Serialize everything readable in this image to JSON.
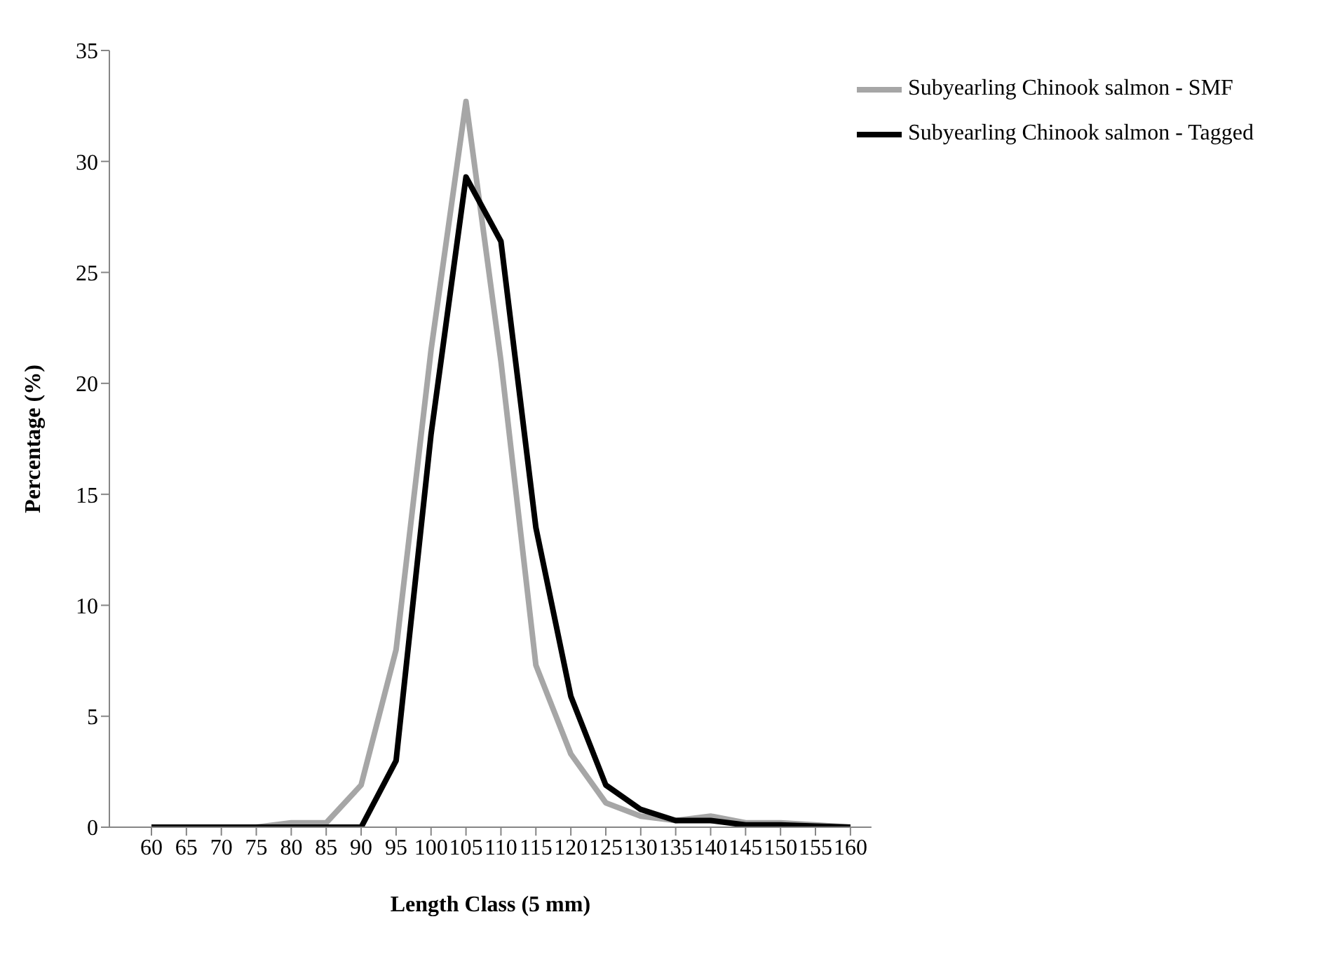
{
  "chart_data": {
    "type": "line",
    "xlabel": "Length Class (5 mm)",
    "ylabel": "Percentage (%)",
    "categories": [
      "60",
      "65",
      "70",
      "75",
      "80",
      "85",
      "90",
      "95",
      "100",
      "105",
      "110",
      "115",
      "120",
      "125",
      "130",
      "135",
      "140",
      "145",
      "150",
      "155",
      "160"
    ],
    "series": [
      {
        "name": "Subyearling Chinook salmon - SMF",
        "color": "#a6a6a6",
        "values": [
          0,
          0,
          0,
          0,
          0.2,
          0.2,
          1.9,
          8,
          21.5,
          32.7,
          21,
          7.3,
          3.3,
          1.1,
          0.5,
          0.3,
          0.5,
          0.2,
          0.2,
          0.1,
          0
        ]
      },
      {
        "name": "Subyearling Chinook salmon - Tagged",
        "color": "#000000",
        "values": [
          0,
          0,
          0,
          0,
          0,
          0,
          0,
          3,
          17.7,
          29.3,
          26.4,
          13.5,
          5.9,
          1.9,
          0.8,
          0.3,
          0.3,
          0.1,
          0.1,
          0.05,
          0
        ]
      }
    ],
    "ylim": [
      0,
      35
    ],
    "yticks": [
      0,
      5,
      10,
      15,
      20,
      25,
      30,
      35
    ],
    "grid": false,
    "legend": "top right",
    "marker": "none",
    "line_style": "solid"
  }
}
